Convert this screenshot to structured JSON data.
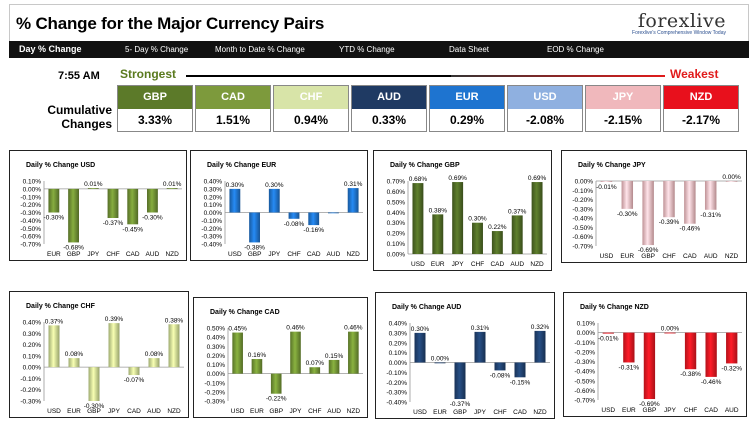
{
  "header": {
    "title": "% Change for the Major Currency Pairs",
    "logo": "forexlive",
    "logo_tag": "Forexlive's Comprehensive Window Today",
    "nav": [
      {
        "label": "Day % Change",
        "active": true
      },
      {
        "label": "5- Day % Change",
        "active": false
      },
      {
        "label": "Month to Date % Change",
        "active": false
      },
      {
        "label": "YTD % Change",
        "active": false
      },
      {
        "label": "Data Sheet",
        "active": false
      },
      {
        "label": "EOD % Change",
        "active": false
      }
    ]
  },
  "summary": {
    "time": "7:55 AM",
    "strongest_label": "Strongest",
    "weakest_label": "Weakest",
    "cumulative_label": "Cumulative Changes",
    "currencies": [
      {
        "code": "GBP",
        "value": "3.33%",
        "color": "#5c7a29"
      },
      {
        "code": "CAD",
        "value": "1.51%",
        "color": "#7d9a3c"
      },
      {
        "code": "CHF",
        "value": "0.94%",
        "color": "#d8e4a8"
      },
      {
        "code": "AUD",
        "value": "0.33%",
        "color": "#1f3a63"
      },
      {
        "code": "EUR",
        "value": "0.29%",
        "color": "#1e74d0"
      },
      {
        "code": "USD",
        "value": "-2.08%",
        "color": "#8fb0e0"
      },
      {
        "code": "JPY",
        "value": "-2.15%",
        "color": "#f0b8bc"
      },
      {
        "code": "NZD",
        "value": "-2.17%",
        "color": "#e8101c"
      }
    ]
  },
  "chart_data": [
    {
      "type": "bar",
      "title": "Daily % Change USD",
      "categories": [
        "EUR",
        "GBP",
        "JPY",
        "CHF",
        "CAD",
        "AUD",
        "NZD"
      ],
      "values": [
        -0.3,
        -0.68,
        0.01,
        -0.37,
        -0.45,
        -0.3,
        0.01
      ],
      "labels": [
        "-0.30%",
        "-0.68%",
        "0.01%",
        "-0.37%",
        "-0.45%",
        "-0.30%",
        "0.01%"
      ],
      "ylim": [
        -0.7,
        0.1
      ],
      "ticks": [
        "0.10%",
        "0.00%",
        "-0.10%",
        "-0.20%",
        "-0.30%",
        "-0.40%",
        "-0.50%",
        "-0.60%",
        "-0.70%"
      ],
      "color": "#6b8a32"
    },
    {
      "type": "bar",
      "title": "Daily % Change EUR",
      "categories": [
        "USD",
        "GBP",
        "JPY",
        "CHF",
        "CAD",
        "AUD",
        "NZD"
      ],
      "values": [
        0.3,
        -0.38,
        0.3,
        -0.08,
        -0.16,
        0.0,
        0.31
      ],
      "labels": [
        "0.30%",
        "-0.38%",
        "0.30%",
        "-0.08%",
        "-0.16%",
        "",
        "0.31%"
      ],
      "ylim": [
        -0.4,
        0.4
      ],
      "ticks": [
        "0.40%",
        "0.30%",
        "0.20%",
        "0.10%",
        "0.00%",
        "-0.10%",
        "-0.20%",
        "-0.30%",
        "-0.40%"
      ],
      "color": "#1e6fc4"
    },
    {
      "type": "bar",
      "title": "Daily % Change GBP",
      "categories": [
        "USD",
        "EUR",
        "JPY",
        "CHF",
        "CAD",
        "AUD",
        "NZD"
      ],
      "values": [
        0.68,
        0.38,
        0.69,
        0.3,
        0.22,
        0.37,
        0.69
      ],
      "labels": [
        "0.68%",
        "0.38%",
        "0.69%",
        "0.30%",
        "0.22%",
        "0.37%",
        "0.69%"
      ],
      "ylim": [
        0.0,
        0.7
      ],
      "ticks": [
        "0.70%",
        "0.60%",
        "0.50%",
        "0.40%",
        "0.30%",
        "0.20%",
        "0.10%",
        "0.00%"
      ],
      "color": "#4c6624"
    },
    {
      "type": "bar",
      "title": "Daily % Change JPY",
      "categories": [
        "USD",
        "EUR",
        "GBP",
        "CHF",
        "CAD",
        "AUD",
        "NZD"
      ],
      "values": [
        -0.01,
        -0.3,
        -0.69,
        -0.39,
        -0.46,
        -0.31,
        0.0
      ],
      "labels": [
        "-0.01%",
        "-0.30%",
        "-0.69%",
        "-0.39%",
        "-0.46%",
        "-0.31%",
        "0.00%"
      ],
      "ylim": [
        -0.7,
        0.0
      ],
      "ticks": [
        "0.00%",
        "-0.10%",
        "-0.20%",
        "-0.30%",
        "-0.40%",
        "-0.50%",
        "-0.60%",
        "-0.70%"
      ],
      "color": "#efb6bb"
    },
    {
      "type": "bar",
      "title": "Daily % Change CHF",
      "categories": [
        "USD",
        "EUR",
        "GBP",
        "JPY",
        "CAD",
        "AUD",
        "NZD"
      ],
      "values": [
        0.37,
        0.08,
        -0.3,
        0.39,
        -0.07,
        0.08,
        0.38
      ],
      "labels": [
        "0.37%",
        "0.08%",
        "-0.30%",
        "0.39%",
        "-0.07%",
        "0.08%",
        "0.38%"
      ],
      "ylim": [
        -0.3,
        0.4
      ],
      "ticks": [
        "0.40%",
        "0.30%",
        "0.20%",
        "0.10%",
        "0.00%",
        "-0.10%",
        "-0.20%",
        "-0.30%"
      ],
      "color": "#c6d68e"
    },
    {
      "type": "bar",
      "title": "Daily % Change CAD",
      "categories": [
        "USD",
        "EUR",
        "GBP",
        "JPY",
        "CHF",
        "AUD",
        "NZD"
      ],
      "values": [
        0.45,
        0.16,
        -0.22,
        0.46,
        0.07,
        0.15,
        0.46
      ],
      "labels": [
        "0.45%",
        "0.16%",
        "-0.22%",
        "0.46%",
        "0.07%",
        "0.15%",
        "0.46%"
      ],
      "ylim": [
        -0.3,
        0.5
      ],
      "ticks": [
        "0.50%",
        "0.40%",
        "0.30%",
        "0.20%",
        "0.10%",
        "0.00%",
        "-0.10%",
        "-0.20%",
        "-0.30%"
      ],
      "color": "#6e8f33"
    },
    {
      "type": "bar",
      "title": "Daily % Change AUD",
      "categories": [
        "USD",
        "EUR",
        "GBP",
        "JPY",
        "CHF",
        "CAD",
        "NZD"
      ],
      "values": [
        0.3,
        0.0,
        -0.37,
        0.31,
        -0.08,
        -0.15,
        0.32
      ],
      "labels": [
        "0.30%",
        "0.00%",
        "-0.37%",
        "0.31%",
        "-0.08%",
        "-0.15%",
        "0.32%"
      ],
      "ylim": [
        -0.4,
        0.4
      ],
      "ticks": [
        "0.40%",
        "0.30%",
        "0.20%",
        "0.10%",
        "0.00%",
        "-0.10%",
        "-0.20%",
        "-0.30%",
        "-0.40%"
      ],
      "color": "#1f3f6b"
    },
    {
      "type": "bar",
      "title": "Daily % Change NZD",
      "categories": [
        "USD",
        "EUR",
        "GBP",
        "JPY",
        "CHF",
        "CAD",
        "AUD"
      ],
      "values": [
        -0.01,
        -0.31,
        -0.69,
        0.0,
        -0.38,
        -0.46,
        -0.32
      ],
      "labels": [
        "-0.01%",
        "-0.31%",
        "-0.69%",
        "0.00%",
        "-0.38%",
        "-0.46%",
        "-0.32%"
      ],
      "ylim": [
        -0.7,
        0.1
      ],
      "ticks": [
        "0.10%",
        "0.00%",
        "-0.10%",
        "-0.20%",
        "-0.30%",
        "-0.40%",
        "-0.50%",
        "-0.60%",
        "-0.70%"
      ],
      "color": "#e01620"
    }
  ]
}
